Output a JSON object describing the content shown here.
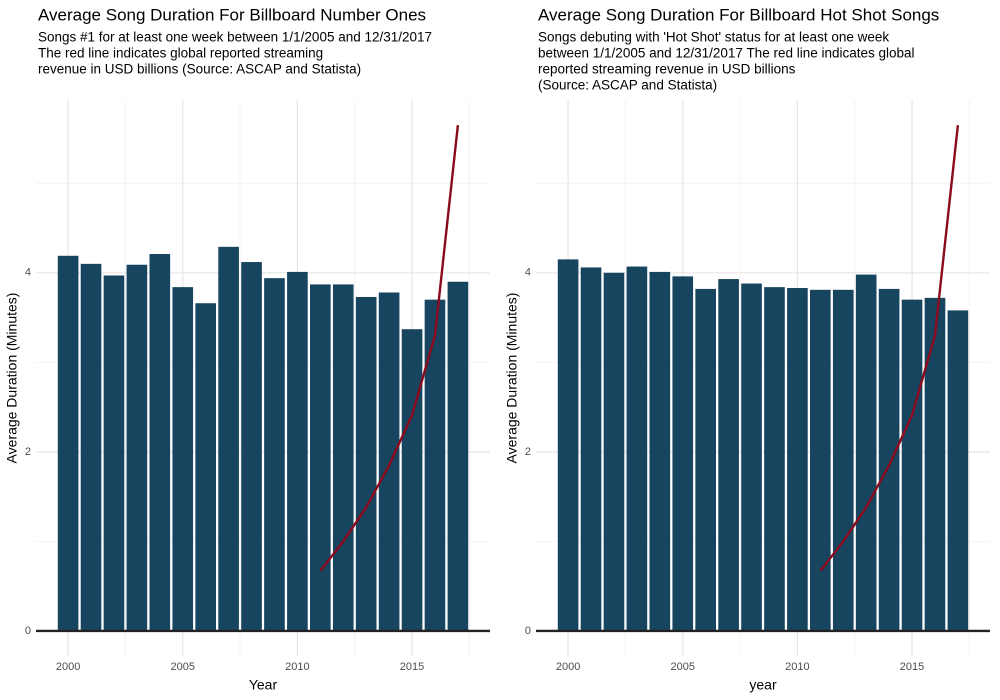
{
  "chart_data": [
    {
      "type": "bar",
      "title": "Average Song Duration For Billboard Number Ones",
      "subtitle": [
        "Songs #1 for at least one week between 1/1/2005 and 12/31/2017",
        "The red line indicates global reported streaming",
        "revenue in USD billions (Source: ASCAP and Statista)"
      ],
      "x_label": "Year",
      "y_label": "Average Duration (Minutes)",
      "x": [
        2000,
        2001,
        2002,
        2003,
        2004,
        2005,
        2006,
        2007,
        2008,
        2009,
        2010,
        2011,
        2012,
        2013,
        2014,
        2015,
        2016,
        2017
      ],
      "values": [
        4.19,
        4.1,
        3.97,
        4.09,
        4.21,
        3.84,
        3.66,
        4.29,
        4.12,
        3.94,
        4.01,
        3.87,
        3.87,
        3.73,
        3.78,
        3.37,
        3.7,
        3.9
      ],
      "color": "#17455f",
      "line": {
        "x": [
          2011,
          2012,
          2013,
          2014,
          2015,
          2016,
          2017
        ],
        "values": [
          0.67,
          1.0,
          1.38,
          1.85,
          2.41,
          3.3,
          5.65
        ],
        "color": "#8b0a1e"
      },
      "xlim": [
        1998.6,
        2018.4
      ],
      "xticks": [
        2000,
        2005,
        2010,
        2015
      ],
      "ylim": [
        -0.28,
        5.93
      ],
      "yticks": [
        0,
        2,
        4
      ],
      "minor_yticks": [
        1,
        3,
        5
      ],
      "minor_xticks": [
        2002.5,
        2007.5,
        2012.5,
        2017.5
      ],
      "grid": true
    },
    {
      "type": "bar",
      "title": "Average Song Duration For Billboard Hot Shot Songs",
      "subtitle": [
        "Songs debuting with 'Hot Shot' status for at least one week",
        "between 1/1/2005 and 12/31/2017 The red line indicates global",
        "reported streaming revenue in USD billions",
        "(Source: ASCAP and Statista)"
      ],
      "x_label": "year",
      "y_label": "Average Duration (Minutes)",
      "x": [
        2000,
        2001,
        2002,
        2003,
        2004,
        2005,
        2006,
        2007,
        2008,
        2009,
        2010,
        2011,
        2012,
        2013,
        2014,
        2015,
        2016,
        2017
      ],
      "values": [
        4.15,
        4.06,
        4.0,
        4.07,
        4.01,
        3.96,
        3.82,
        3.93,
        3.88,
        3.84,
        3.83,
        3.81,
        3.81,
        3.98,
        3.82,
        3.7,
        3.72,
        3.58
      ],
      "color": "#17455f",
      "line": {
        "x": [
          2011,
          2012,
          2013,
          2014,
          2015,
          2016,
          2017
        ],
        "values": [
          0.67,
          1.0,
          1.38,
          1.85,
          2.41,
          3.3,
          5.65
        ],
        "color": "#8b0a1e"
      },
      "xlim": [
        1998.6,
        2018.4
      ],
      "xticks": [
        2000,
        2005,
        2010,
        2015
      ],
      "ylim": [
        -0.28,
        5.93
      ],
      "yticks": [
        0,
        2,
        4
      ],
      "minor_yticks": [
        1,
        3,
        5
      ],
      "minor_xticks": [
        2002.5,
        2007.5,
        2012.5,
        2017.5
      ],
      "grid": true
    }
  ]
}
